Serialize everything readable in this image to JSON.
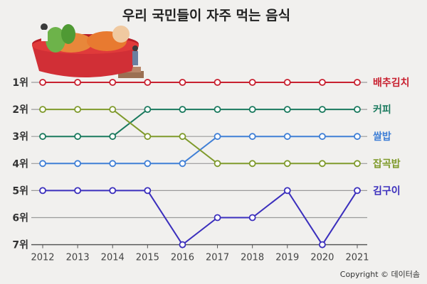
{
  "chart_data": {
    "type": "line",
    "title": "우리 국민들이 자주 먹는 음식",
    "x": [
      "2012",
      "2013",
      "2014",
      "2015",
      "2016",
      "2017",
      "2018",
      "2019",
      "2020",
      "2021"
    ],
    "y_tick_labels": [
      "1위",
      "2위",
      "3위",
      "4위",
      "5위",
      "6위",
      "7위"
    ],
    "ylim": [
      1,
      7
    ],
    "y_inverted": true,
    "grid": true,
    "legend": "labels at right end of each line",
    "series": [
      {
        "name": "배추김치",
        "color": "#c8202f",
        "values": [
          1,
          1,
          1,
          1,
          1,
          1,
          1,
          1,
          1,
          1
        ]
      },
      {
        "name": "커피",
        "color": "#1a7a5e",
        "values": [
          3,
          3,
          3,
          2,
          2,
          2,
          2,
          2,
          2,
          2
        ]
      },
      {
        "name": "쌀밥",
        "color": "#3f7fd6",
        "values": [
          4,
          4,
          4,
          4,
          4,
          3,
          3,
          3,
          3,
          3
        ]
      },
      {
        "name": "잡곡밥",
        "color": "#7f9a2b",
        "values": [
          2,
          2,
          2,
          3,
          3,
          4,
          4,
          4,
          4,
          4
        ]
      },
      {
        "name": "김구이",
        "color": "#3b2fbd",
        "values": [
          5,
          5,
          5,
          5,
          7,
          6,
          6,
          5,
          7,
          5
        ]
      }
    ]
  },
  "copyright": "Copyright © 데이터솜",
  "illustration": {
    "icon": "kimchi-bowl-illustration"
  }
}
